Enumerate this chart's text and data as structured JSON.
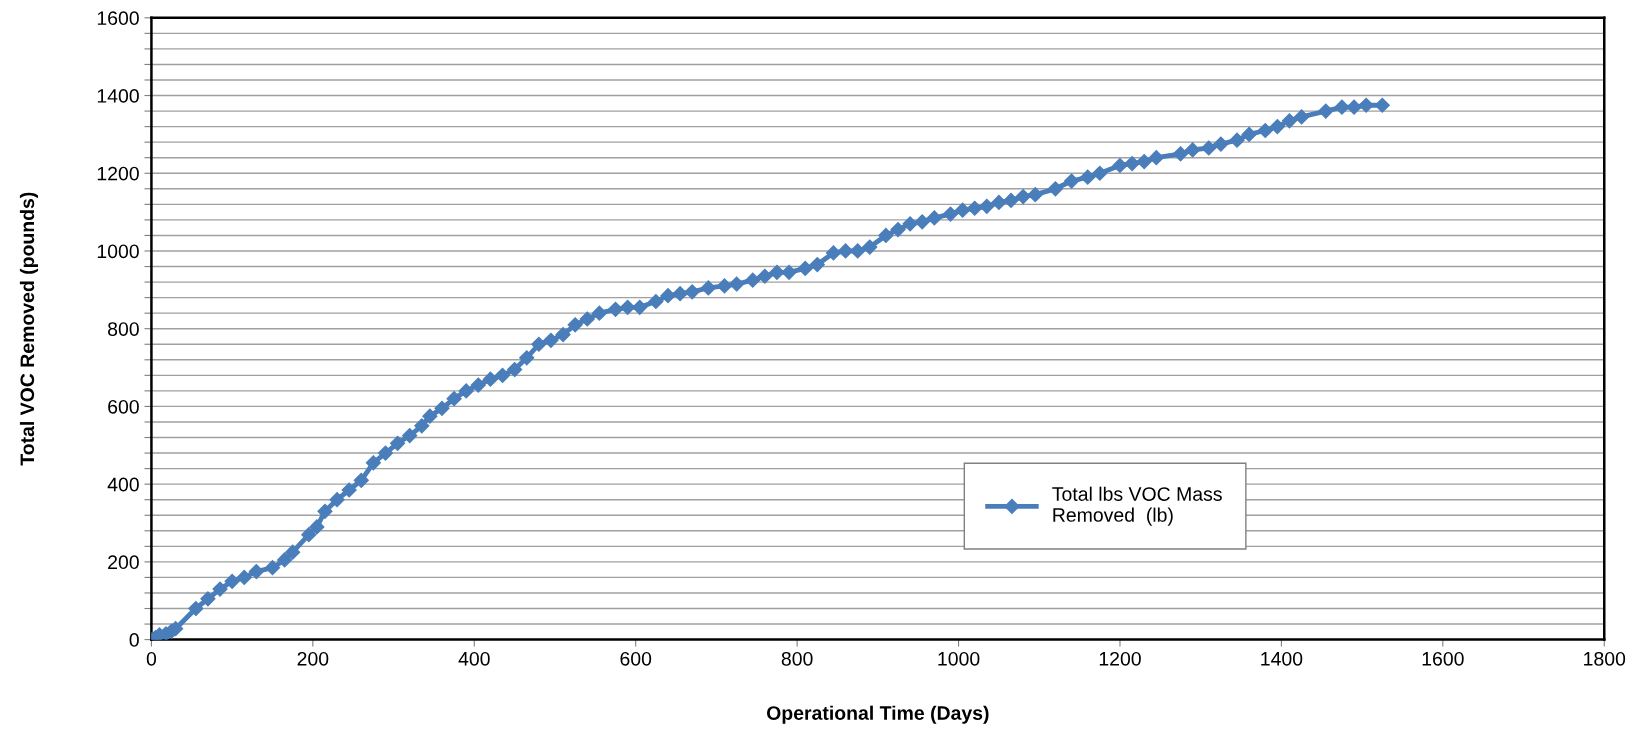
{
  "chart_data": {
    "type": "line",
    "xlabel": "Operational Time (Days)",
    "ylabel": "Total VOC Removed (pounds)",
    "xlim": [
      0,
      1800
    ],
    "ylim": [
      0,
      1600
    ],
    "xticks": [
      0,
      200,
      400,
      600,
      800,
      1000,
      1200,
      1400,
      1600,
      1800
    ],
    "yticks": [
      0,
      {
        "value": 40,
        "label": null
      },
      {
        "value": 80,
        "label": null
      },
      {
        "value": 120,
        "label": null
      },
      {
        "value": 160,
        "label": null
      },
      200,
      {
        "value": 240,
        "label": null
      },
      {
        "value": 280,
        "label": null
      },
      {
        "value": 320,
        "label": null
      },
      {
        "value": 360,
        "label": null
      },
      400,
      {
        "value": 440,
        "label": null
      },
      {
        "value": 480,
        "label": null
      },
      {
        "value": 520,
        "label": null
      },
      {
        "value": 560,
        "label": null
      },
      600,
      {
        "value": 640,
        "label": null
      },
      {
        "value": 680,
        "label": null
      },
      {
        "value": 720,
        "label": null
      },
      {
        "value": 760,
        "label": null
      },
      800,
      {
        "value": 840,
        "label": null
      },
      {
        "value": 880,
        "label": null
      },
      {
        "value": 920,
        "label": null
      },
      {
        "value": 960,
        "label": null
      },
      1000,
      {
        "value": 1040,
        "label": null
      },
      {
        "value": 1080,
        "label": null
      },
      {
        "value": 1120,
        "label": null
      },
      {
        "value": 1160,
        "label": null
      },
      1200,
      {
        "value": 1240,
        "label": null
      },
      {
        "value": 1280,
        "label": null
      },
      {
        "value": 1320,
        "label": null
      },
      {
        "value": 1360,
        "label": null
      },
      1400,
      {
        "value": 1440,
        "label": null
      },
      {
        "value": 1480,
        "label": null
      },
      {
        "value": 1520,
        "label": null
      },
      {
        "value": 1560,
        "label": null
      },
      1600
    ],
    "grid": "y",
    "legend": "bottom right",
    "marker": "diamond",
    "line_style": "solid",
    "series": [
      {
        "name": "Total lbs VOC Mass\nRemoved  (lb)",
        "color": "#4a7ebb",
        "x": [
          0,
          5,
          10,
          18,
          25,
          30,
          55,
          70,
          85,
          100,
          115,
          130,
          150,
          165,
          175,
          195,
          205,
          215,
          230,
          245,
          260,
          275,
          290,
          305,
          320,
          335,
          345,
          360,
          375,
          390,
          405,
          420,
          435,
          450,
          465,
          480,
          495,
          510,
          525,
          540,
          555,
          575,
          590,
          605,
          625,
          640,
          655,
          670,
          690,
          710,
          725,
          745,
          760,
          775,
          790,
          810,
          825,
          845,
          860,
          875,
          890,
          910,
          925,
          940,
          955,
          970,
          990,
          1005,
          1020,
          1035,
          1050,
          1065,
          1080,
          1095,
          1120,
          1140,
          1160,
          1175,
          1200,
          1215,
          1230,
          1245,
          1275,
          1290,
          1310,
          1325,
          1345,
          1360,
          1380,
          1395,
          1410,
          1425,
          1455,
          1475,
          1490,
          1505,
          1525
        ],
        "values": [
          0,
          5,
          12,
          15,
          22,
          28,
          80,
          105,
          130,
          150,
          160,
          175,
          185,
          205,
          225,
          270,
          290,
          330,
          360,
          385,
          410,
          455,
          480,
          505,
          525,
          550,
          575,
          595,
          620,
          640,
          655,
          670,
          680,
          695,
          725,
          760,
          770,
          785,
          810,
          825,
          840,
          850,
          855,
          855,
          870,
          885,
          890,
          895,
          905,
          910,
          915,
          925,
          935,
          945,
          945,
          955,
          965,
          995,
          1000,
          1000,
          1010,
          1040,
          1055,
          1070,
          1075,
          1085,
          1095,
          1105,
          1110,
          1115,
          1125,
          1130,
          1140,
          1145,
          1160,
          1180,
          1190,
          1200,
          1220,
          1225,
          1230,
          1240,
          1250,
          1260,
          1265,
          1275,
          1285,
          1300,
          1310,
          1320,
          1335,
          1345,
          1360,
          1370,
          1370,
          1375,
          1375
        ]
      }
    ]
  }
}
